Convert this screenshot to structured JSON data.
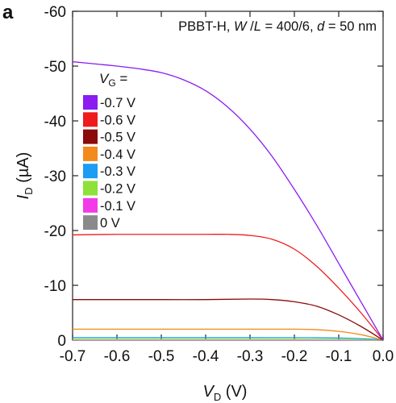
{
  "panel_label": "a",
  "annotation": {
    "device": "PBBT-H, ",
    "w_italic": "W",
    "slash": " /",
    "l_italic": "L",
    "ratio": " = 400/6, ",
    "d_italic": "d",
    "thickness": " = 50 nm"
  },
  "axes": {
    "x_main": "V",
    "x_sub": "D",
    "x_unit": " (V)",
    "y_main": "I",
    "y_sub": "D",
    "y_unit": " (µA)"
  },
  "legend": {
    "title_main": "V",
    "title_sub": "G",
    "title_suffix": " ="
  },
  "chart_data": {
    "type": "line",
    "xlim": [
      -0.7,
      0.0
    ],
    "ylim": [
      0,
      -60
    ],
    "y_reversed": true,
    "grid": false,
    "legend_position": "left",
    "x_ticks": [
      "-0.7",
      "-0.6",
      "-0.5",
      "-0.4",
      "-0.3",
      "-0.2",
      "-0.1",
      "0.0"
    ],
    "y_ticks": [
      "0",
      "-10",
      "-20",
      "-30",
      "-40",
      "-50",
      "-60"
    ],
    "series": [
      {
        "name": "-0.7 V",
        "color": "#8b1cf2",
        "points": [
          [
            -0.7,
            -50.8
          ],
          [
            -0.65,
            -50.4
          ],
          [
            -0.6,
            -50.0
          ],
          [
            -0.55,
            -49.5
          ],
          [
            -0.5,
            -48.8
          ],
          [
            -0.45,
            -47.5
          ],
          [
            -0.4,
            -45.5
          ],
          [
            -0.35,
            -42.5
          ],
          [
            -0.3,
            -38.5
          ],
          [
            -0.25,
            -33.5
          ],
          [
            -0.2,
            -27.5
          ],
          [
            -0.15,
            -21.0
          ],
          [
            -0.1,
            -14.0
          ],
          [
            -0.05,
            -7.0
          ],
          [
            0.0,
            0.0
          ]
        ]
      },
      {
        "name": "-0.6 V",
        "color": "#ee1c1c",
        "points": [
          [
            -0.7,
            -19.2
          ],
          [
            -0.6,
            -19.3
          ],
          [
            -0.5,
            -19.3
          ],
          [
            -0.4,
            -19.3
          ],
          [
            -0.35,
            -19.3
          ],
          [
            -0.3,
            -19.1
          ],
          [
            -0.25,
            -18.4
          ],
          [
            -0.2,
            -16.6
          ],
          [
            -0.15,
            -13.5
          ],
          [
            -0.1,
            -9.5
          ],
          [
            -0.05,
            -5.0
          ],
          [
            0.0,
            0.0
          ]
        ]
      },
      {
        "name": "-0.5 V",
        "color": "#8b0a0a",
        "points": [
          [
            -0.7,
            -7.4
          ],
          [
            -0.6,
            -7.4
          ],
          [
            -0.5,
            -7.4
          ],
          [
            -0.4,
            -7.4
          ],
          [
            -0.3,
            -7.5
          ],
          [
            -0.25,
            -7.4
          ],
          [
            -0.2,
            -7.0
          ],
          [
            -0.15,
            -6.2
          ],
          [
            -0.1,
            -4.6
          ],
          [
            -0.05,
            -2.5
          ],
          [
            0.0,
            0.0
          ]
        ]
      },
      {
        "name": "-0.4 V",
        "color": "#f28a1c",
        "points": [
          [
            -0.7,
            -2.0
          ],
          [
            -0.5,
            -2.0
          ],
          [
            -0.3,
            -2.0
          ],
          [
            -0.2,
            -2.0
          ],
          [
            -0.15,
            -1.9
          ],
          [
            -0.1,
            -1.6
          ],
          [
            -0.05,
            -1.0
          ],
          [
            0.0,
            0.0
          ]
        ]
      },
      {
        "name": "-0.3 V",
        "color": "#1c9cf2",
        "points": [
          [
            -0.7,
            -0.45
          ],
          [
            -0.3,
            -0.45
          ],
          [
            -0.15,
            -0.43
          ],
          [
            -0.08,
            -0.35
          ],
          [
            -0.03,
            -0.2
          ],
          [
            0.0,
            0.0
          ]
        ]
      },
      {
        "name": "-0.2 V",
        "color": "#8ee03a",
        "points": [
          [
            -0.7,
            -0.12
          ],
          [
            -0.2,
            -0.12
          ],
          [
            -0.08,
            -0.1
          ],
          [
            -0.03,
            -0.06
          ],
          [
            0.0,
            0.0
          ]
        ]
      },
      {
        "name": "-0.1 V",
        "color": "#f23ae8",
        "points": [
          [
            -0.7,
            -0.03
          ],
          [
            -0.1,
            -0.03
          ],
          [
            -0.03,
            -0.02
          ],
          [
            0.0,
            0.0
          ]
        ]
      },
      {
        "name": "0 V",
        "color": "#8a8a8a",
        "points": [
          [
            -0.7,
            0.0
          ],
          [
            0.0,
            0.0
          ]
        ]
      }
    ]
  }
}
